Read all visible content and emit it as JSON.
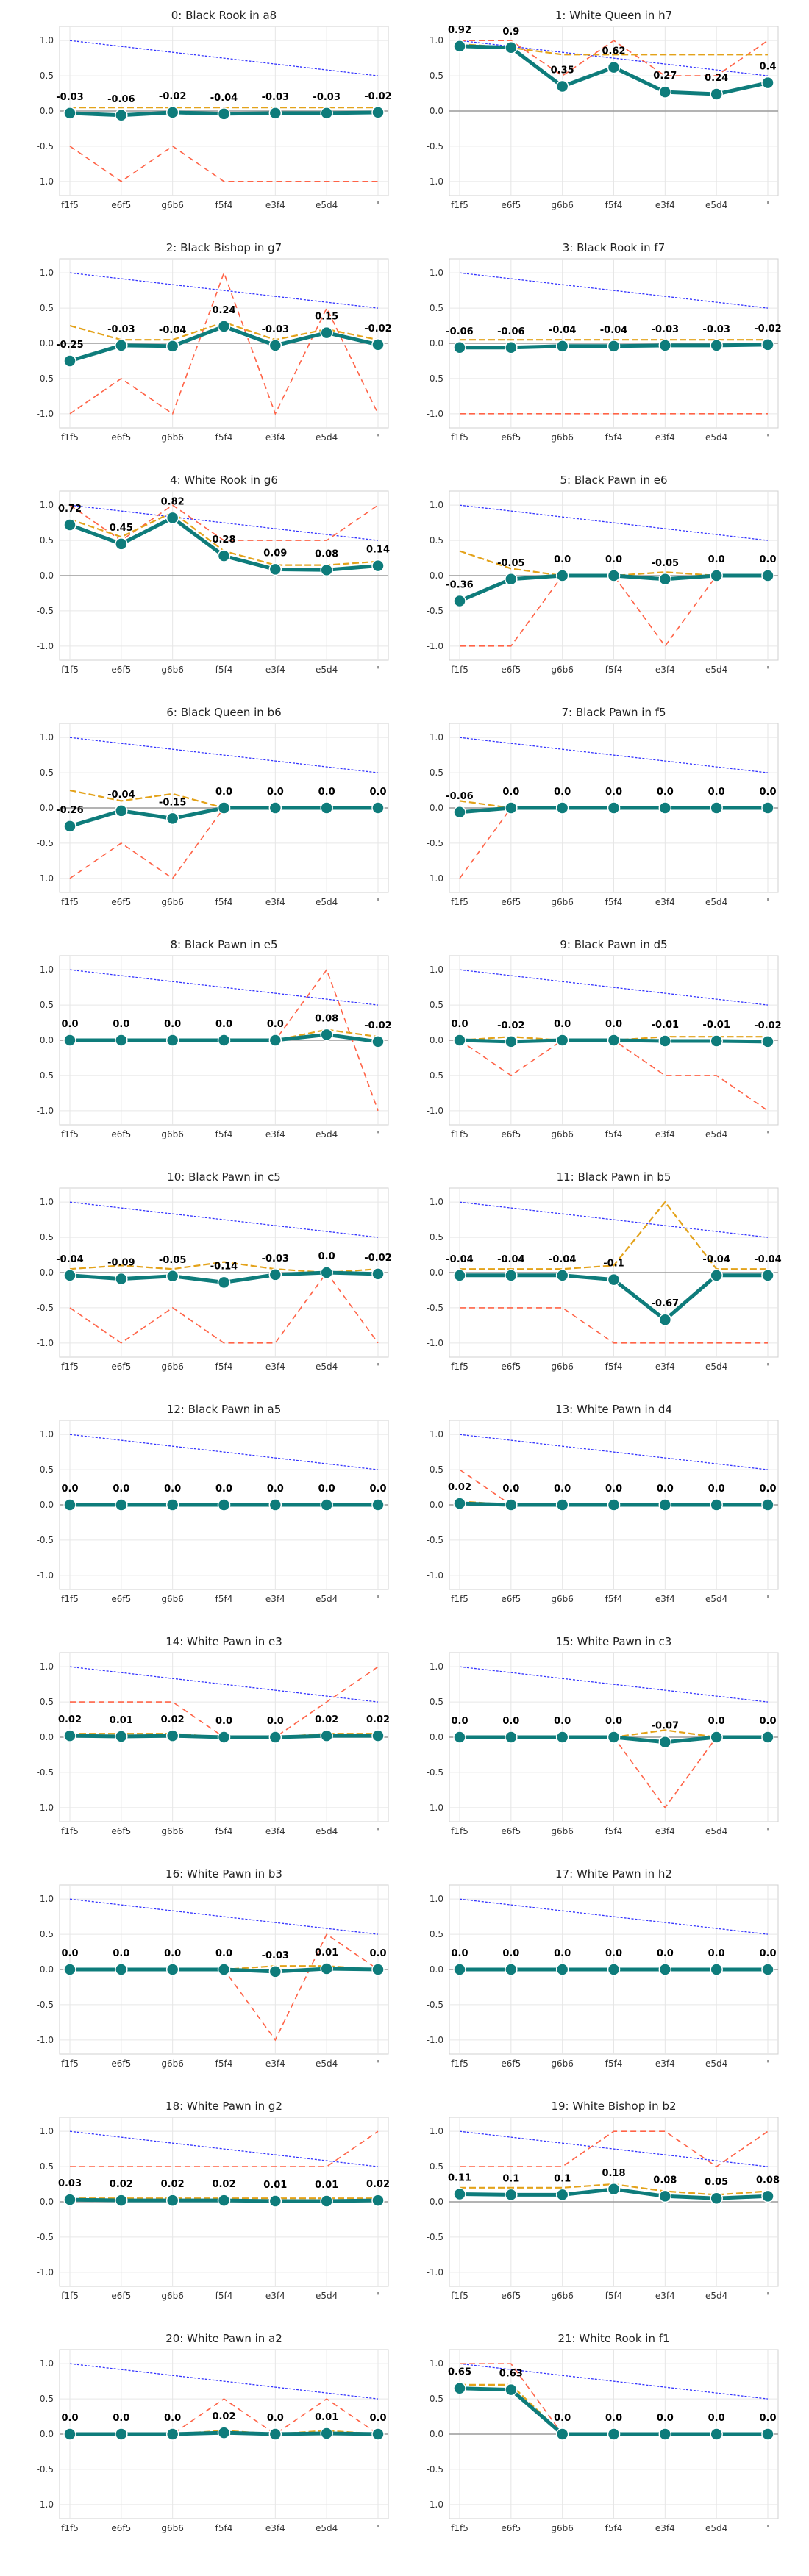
{
  "chart_data": {
    "type": "line",
    "categories": [
      "f1f5",
      "e6f5",
      "g6b6",
      "f5f4",
      "e3f4",
      "e5d4",
      "'"
    ],
    "ylim": [
      -1.2,
      1.2
    ],
    "yticks": [
      "1.0",
      "0.5",
      "0.0",
      "-0.5",
      "-1.0"
    ],
    "ytick_values": [
      1.0,
      0.5,
      0.0,
      -0.5,
      -1.0
    ],
    "reference_line": [
      1.0,
      0.917,
      0.833,
      0.75,
      0.667,
      0.583,
      0.5
    ],
    "colors": {
      "main": "#0e7c7b",
      "orange": "#e3a21a",
      "red": "#ff6347",
      "blue": "#3333ff",
      "grid": "#e6e6e6",
      "zero": "#9a9a9a",
      "marker_edge": "#ffffff"
    },
    "subplots": [
      {
        "title": "0: Black Rook in a8",
        "values": [
          -0.03,
          -0.06,
          -0.02,
          -0.04,
          -0.03,
          -0.03,
          -0.02
        ],
        "labels": [
          "-0.03",
          "-0.06",
          "-0.02",
          "-0.04",
          "-0.03",
          "-0.03",
          "-0.02"
        ],
        "orange": [
          0.05,
          0.05,
          0.05,
          0.05,
          0.05,
          0.05,
          0.05
        ],
        "red": [
          -0.5,
          -1.0,
          -0.5,
          -1.0,
          -1.0,
          -1.0,
          -1.0
        ]
      },
      {
        "title": "1: White Queen in h7",
        "values": [
          0.92,
          0.9,
          0.35,
          0.62,
          0.27,
          0.24,
          0.4
        ],
        "labels": [
          "0.92",
          "0.9",
          "0.35",
          "0.62",
          "0.27",
          "0.24",
          "0.4"
        ],
        "orange": [
          0.95,
          0.9,
          0.8,
          0.8,
          0.8,
          0.8,
          0.8
        ],
        "red": [
          1.0,
          1.0,
          0.5,
          1.0,
          0.5,
          0.5,
          1.0
        ]
      },
      {
        "title": "2: Black Bishop in g7",
        "values": [
          -0.25,
          -0.03,
          -0.04,
          0.24,
          -0.03,
          0.15,
          -0.02
        ],
        "labels": [
          "-0.25",
          "-0.03",
          "-0.04",
          "0.24",
          "-0.03",
          "0.15",
          "-0.02"
        ],
        "orange": [
          0.25,
          0.05,
          0.05,
          0.3,
          0.05,
          0.2,
          0.05
        ],
        "red": [
          -1.0,
          -0.5,
          -1.0,
          1.0,
          -1.0,
          0.5,
          -1.0
        ]
      },
      {
        "title": "3: Black Rook in f7",
        "values": [
          -0.06,
          -0.06,
          -0.04,
          -0.04,
          -0.03,
          -0.03,
          -0.02
        ],
        "labels": [
          "-0.06",
          "-0.06",
          "-0.04",
          "-0.04",
          "-0.03",
          "-0.03",
          "-0.02"
        ],
        "orange": [
          0.05,
          0.05,
          0.05,
          0.05,
          0.05,
          0.05,
          0.05
        ],
        "red": [
          -1.0,
          -1.0,
          -1.0,
          -1.0,
          -1.0,
          -1.0,
          -1.0
        ]
      },
      {
        "title": "4: White Rook in g6",
        "values": [
          0.72,
          0.45,
          0.82,
          0.28,
          0.09,
          0.08,
          0.14
        ],
        "labels": [
          "0.72",
          "0.45",
          "0.82",
          "0.28",
          "0.09",
          "0.08",
          "0.14"
        ],
        "orange": [
          0.8,
          0.55,
          0.9,
          0.35,
          0.15,
          0.15,
          0.2
        ],
        "red": [
          1.0,
          0.5,
          1.0,
          0.5,
          0.5,
          0.5,
          1.0
        ]
      },
      {
        "title": "5: Black Pawn in e6",
        "values": [
          -0.36,
          -0.05,
          0.0,
          0.0,
          -0.05,
          0.0,
          0.0
        ],
        "labels": [
          "-0.36",
          "-0.05",
          "0.0",
          "0.0",
          "-0.05",
          "0.0",
          "0.0"
        ],
        "orange": [
          0.35,
          0.1,
          0.0,
          0.0,
          0.05,
          0.0,
          0.0
        ],
        "red": [
          -1.0,
          -1.0,
          0.0,
          0.0,
          -1.0,
          0.0,
          0.0
        ]
      },
      {
        "title": "6: Black Queen in b6",
        "values": [
          -0.26,
          -0.04,
          -0.15,
          0.0,
          0.0,
          0.0,
          0.0
        ],
        "labels": [
          "-0.26",
          "-0.04",
          "-0.15",
          "0.0",
          "0.0",
          "0.0",
          "0.0"
        ],
        "orange": [
          0.25,
          0.1,
          0.2,
          0.0,
          0.0,
          0.0,
          0.0
        ],
        "red": [
          -1.0,
          -0.5,
          -1.0,
          0.0,
          0.0,
          0.0,
          0.0
        ]
      },
      {
        "title": "7: Black Pawn in f5",
        "values": [
          -0.06,
          0.0,
          0.0,
          0.0,
          0.0,
          0.0,
          0.0
        ],
        "labels": [
          "-0.06",
          "0.0",
          "0.0",
          "0.0",
          "0.0",
          "0.0",
          "0.0"
        ],
        "orange": [
          0.1,
          0.0,
          0.0,
          0.0,
          0.0,
          0.0,
          0.0
        ],
        "red": [
          -1.0,
          0.0,
          0.0,
          0.0,
          0.0,
          0.0,
          0.0
        ]
      },
      {
        "title": "8: Black Pawn in e5",
        "values": [
          0.0,
          0.0,
          0.0,
          0.0,
          0.0,
          0.08,
          -0.02
        ],
        "labels": [
          "0.0",
          "0.0",
          "0.0",
          "0.0",
          "0.0",
          "0.08",
          "-0.02"
        ],
        "orange": [
          0.0,
          0.0,
          0.0,
          0.0,
          0.0,
          0.15,
          0.05
        ],
        "red": [
          0.0,
          0.0,
          0.0,
          0.0,
          0.0,
          1.0,
          -1.0
        ]
      },
      {
        "title": "9: Black Pawn in d5",
        "values": [
          0.0,
          -0.02,
          0.0,
          0.0,
          -0.01,
          -0.01,
          -0.02
        ],
        "labels": [
          "0.0",
          "-0.02",
          "0.0",
          "0.0",
          "-0.01",
          "-0.01",
          "-0.02"
        ],
        "orange": [
          0.0,
          0.05,
          0.0,
          0.0,
          0.05,
          0.05,
          0.05
        ],
        "red": [
          0.0,
          -0.5,
          0.0,
          0.0,
          -0.5,
          -0.5,
          -1.0
        ]
      },
      {
        "title": "10: Black Pawn in c5",
        "values": [
          -0.04,
          -0.09,
          -0.05,
          -0.14,
          -0.03,
          0.0,
          -0.02
        ],
        "labels": [
          "-0.04",
          "-0.09",
          "-0.05",
          "-0.14",
          "-0.03",
          "0.0",
          "-0.02"
        ],
        "orange": [
          0.05,
          0.1,
          0.05,
          0.15,
          0.05,
          0.0,
          0.05
        ],
        "red": [
          -0.5,
          -1.0,
          -0.5,
          -1.0,
          -1.0,
          0.0,
          -1.0
        ]
      },
      {
        "title": "11: Black Pawn in b5",
        "values": [
          -0.04,
          -0.04,
          -0.04,
          -0.1,
          -0.67,
          -0.04,
          -0.04
        ],
        "labels": [
          "-0.04",
          "-0.04",
          "-0.04",
          "-0.1",
          "-0.67",
          "-0.04",
          "-0.04"
        ],
        "orange": [
          0.05,
          0.05,
          0.05,
          0.1,
          1.0,
          0.05,
          0.05
        ],
        "red": [
          -0.5,
          -0.5,
          -0.5,
          -1.0,
          -1.0,
          -1.0,
          -1.0
        ]
      },
      {
        "title": "12: Black Pawn in a5",
        "values": [
          0.0,
          0.0,
          0.0,
          0.0,
          0.0,
          0.0,
          0.0
        ],
        "labels": [
          "0.0",
          "0.0",
          "0.0",
          "0.0",
          "0.0",
          "0.0",
          "0.0"
        ],
        "orange": [
          0.0,
          0.0,
          0.0,
          0.0,
          0.0,
          0.0,
          0.0
        ],
        "red": [
          0.0,
          0.0,
          0.0,
          0.0,
          0.0,
          0.0,
          0.0
        ]
      },
      {
        "title": "13: White Pawn in d4",
        "values": [
          0.02,
          0.0,
          0.0,
          0.0,
          0.0,
          0.0,
          0.0
        ],
        "labels": [
          "0.02",
          "0.0",
          "0.0",
          "0.0",
          "0.0",
          "0.0",
          "0.0"
        ],
        "orange": [
          0.05,
          0.0,
          0.0,
          0.0,
          0.0,
          0.0,
          0.0
        ],
        "red": [
          0.5,
          0.0,
          0.0,
          0.0,
          0.0,
          0.0,
          0.0
        ]
      },
      {
        "title": "14: White Pawn in e3",
        "values": [
          0.02,
          0.01,
          0.02,
          0.0,
          0.0,
          0.02,
          0.02
        ],
        "labels": [
          "0.02",
          "0.01",
          "0.02",
          "0.0",
          "0.0",
          "0.02",
          "0.02"
        ],
        "orange": [
          0.05,
          0.05,
          0.05,
          0.0,
          0.0,
          0.05,
          0.05
        ],
        "red": [
          0.5,
          0.5,
          0.5,
          0.0,
          0.0,
          0.5,
          1.0
        ]
      },
      {
        "title": "15: White Pawn in c3",
        "values": [
          0.0,
          0.0,
          0.0,
          0.0,
          -0.07,
          0.0,
          0.0
        ],
        "labels": [
          "0.0",
          "0.0",
          "0.0",
          "0.0",
          "-0.07",
          "0.0",
          "0.0"
        ],
        "orange": [
          0.0,
          0.0,
          0.0,
          0.0,
          0.1,
          0.0,
          0.0
        ],
        "red": [
          0.0,
          0.0,
          0.0,
          0.0,
          -1.0,
          0.0,
          0.0
        ]
      },
      {
        "title": "16: White Pawn in b3",
        "values": [
          0.0,
          0.0,
          0.0,
          0.0,
          -0.03,
          0.01,
          0.0
        ],
        "labels": [
          "0.0",
          "0.0",
          "0.0",
          "0.0",
          "-0.03",
          "0.01",
          "0.0"
        ],
        "orange": [
          0.0,
          0.0,
          0.0,
          0.0,
          0.05,
          0.05,
          0.0
        ],
        "red": [
          0.0,
          0.0,
          0.0,
          0.0,
          -1.0,
          0.5,
          0.0
        ]
      },
      {
        "title": "17: White Pawn in h2",
        "values": [
          0.0,
          0.0,
          0.0,
          0.0,
          0.0,
          0.0,
          0.0
        ],
        "labels": [
          "0.0",
          "0.0",
          "0.0",
          "0.0",
          "0.0",
          "0.0",
          "0.0"
        ],
        "orange": [
          0.0,
          0.0,
          0.0,
          0.0,
          0.0,
          0.0,
          0.0
        ],
        "red": [
          0.0,
          0.0,
          0.0,
          0.0,
          0.0,
          0.0,
          0.0
        ]
      },
      {
        "title": "18: White Pawn in g2",
        "values": [
          0.03,
          0.02,
          0.02,
          0.02,
          0.01,
          0.01,
          0.02
        ],
        "labels": [
          "0.03",
          "0.02",
          "0.02",
          "0.02",
          "0.01",
          "0.01",
          "0.02"
        ],
        "orange": [
          0.05,
          0.05,
          0.05,
          0.05,
          0.05,
          0.05,
          0.05
        ],
        "red": [
          0.5,
          0.5,
          0.5,
          0.5,
          0.5,
          0.5,
          1.0
        ]
      },
      {
        "title": "19: White Bishop in b2",
        "values": [
          0.11,
          0.1,
          0.1,
          0.18,
          0.08,
          0.05,
          0.08
        ],
        "labels": [
          "0.11",
          "0.1",
          "0.1",
          "0.18",
          "0.08",
          "0.05",
          "0.08"
        ],
        "orange": [
          0.2,
          0.2,
          0.2,
          0.25,
          0.15,
          0.1,
          0.15
        ],
        "red": [
          0.5,
          0.5,
          0.5,
          1.0,
          1.0,
          0.5,
          1.0
        ]
      },
      {
        "title": "20: White Pawn in a2",
        "values": [
          0.0,
          0.0,
          0.0,
          0.02,
          0.0,
          0.01,
          0.0
        ],
        "labels": [
          "0.0",
          "0.0",
          "0.0",
          "0.02",
          "0.0",
          "0.01",
          "0.0"
        ],
        "orange": [
          0.0,
          0.0,
          0.0,
          0.05,
          0.0,
          0.05,
          0.0
        ],
        "red": [
          0.0,
          0.0,
          0.0,
          0.5,
          0.0,
          0.5,
          0.0
        ]
      },
      {
        "title": "21: White Rook in f1",
        "values": [
          0.65,
          0.63,
          0.0,
          0.0,
          0.0,
          0.0,
          0.0
        ],
        "labels": [
          "0.65",
          "0.63",
          "0.0",
          "0.0",
          "0.0",
          "0.0",
          "0.0"
        ],
        "orange": [
          0.7,
          0.7,
          0.0,
          0.0,
          0.0,
          0.0,
          0.0
        ],
        "red": [
          1.0,
          1.0,
          0.0,
          0.0,
          0.0,
          0.0,
          0.0
        ]
      }
    ]
  }
}
